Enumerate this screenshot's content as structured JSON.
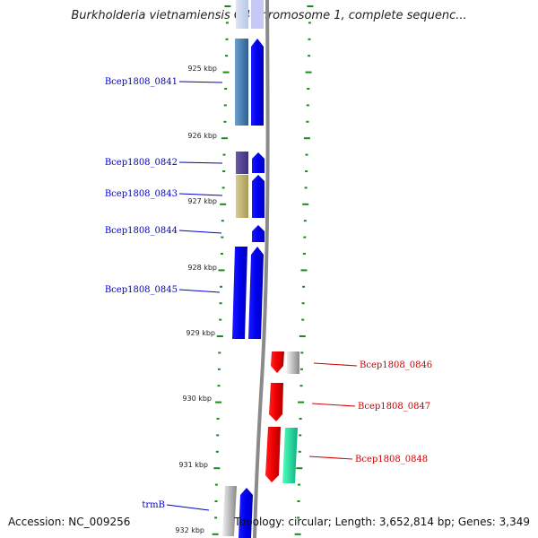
{
  "title": "Burkholderia vietnamiensis G4 chromosome 1, complete sequenc...",
  "accession": "Accession: NC_009256",
  "summary": "Topology: circular; Length: 3,652,814 bp; Genes: 3,349",
  "colors": {
    "forward_strand": "#0000ee",
    "reverse_strand": "#ee0000",
    "grid_dash": "#1a8a1a",
    "backbone": "#888888"
  },
  "ticks": [
    "925 kbp",
    "926 kbp",
    "927 kbp",
    "928 kbp",
    "929 kbp",
    "930 kbp",
    "931 kbp",
    "932 kbp"
  ],
  "genes_left": [
    "Bcep1808_0841",
    "Bcep1808_0842",
    "Bcep1808_0843",
    "Bcep1808_0844",
    "Bcep1808_0845",
    "trmB"
  ],
  "genes_right": [
    "Bcep1808_0846",
    "Bcep1808_0847",
    "Bcep1808_0848"
  ]
}
